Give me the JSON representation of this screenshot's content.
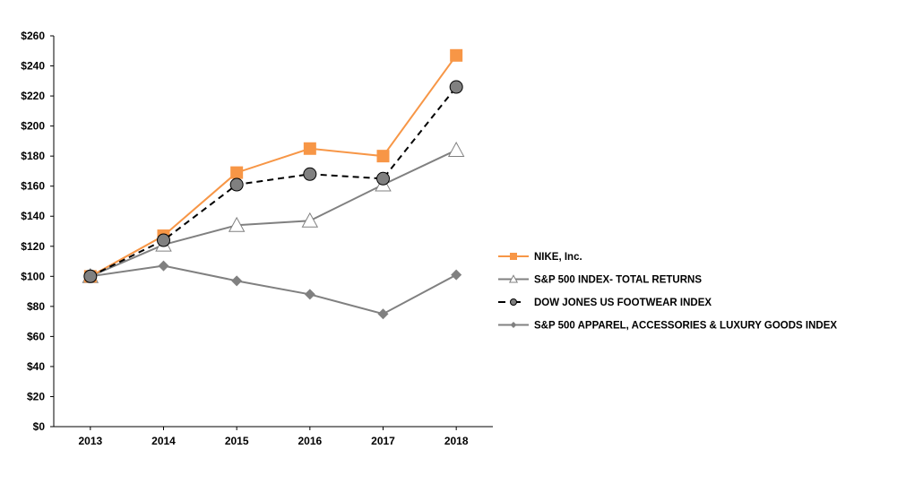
{
  "chart_data": {
    "type": "line",
    "title": "",
    "xlabel": "",
    "ylabel": "",
    "categories": [
      "2013",
      "2014",
      "2015",
      "2016",
      "2017",
      "2018"
    ],
    "ylim": [
      0,
      260
    ],
    "yticks": [
      "$0",
      "$20",
      "$40",
      "$60",
      "$80",
      "$100",
      "$120",
      "$140",
      "$160",
      "$180",
      "$200",
      "$220",
      "$240",
      "$260"
    ],
    "grid": false,
    "legend_position": "right",
    "series": [
      {
        "name": "NIKE, Inc.",
        "values": [
          100,
          127,
          169,
          185,
          180,
          247
        ],
        "color": "#F79646",
        "marker": "square",
        "dash": "solid"
      },
      {
        "name": "S&P 500 INDEX- TOTAL RETURNS",
        "values": [
          100,
          121,
          134,
          137,
          161,
          184
        ],
        "color": "#808080",
        "marker": "triangle-open",
        "dash": "solid"
      },
      {
        "name": "DOW JONES US FOOTWEAR INDEX",
        "values": [
          100,
          124,
          161,
          168,
          165,
          226
        ],
        "color": "#000000",
        "marker": "circle",
        "marker_fill": "#808080",
        "dash": "dashed"
      },
      {
        "name": "S&P 500 APPAREL, ACCESSORIES & LUXURY GOODS INDEX",
        "values": [
          100,
          107,
          97,
          88,
          75,
          101
        ],
        "color": "#808080",
        "marker": "diamond",
        "dash": "solid"
      }
    ]
  }
}
